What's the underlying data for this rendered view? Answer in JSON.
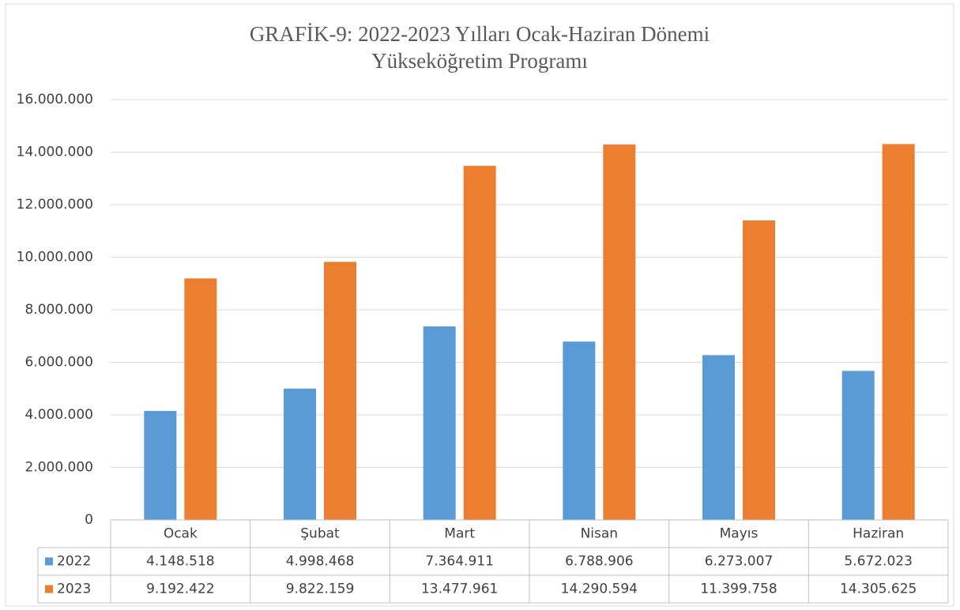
{
  "chart_data": {
    "type": "bar",
    "title": [
      "GRAFİK-9: 2022-2023 Yılları Ocak-Haziran Dönemi",
      "Yükseköğretim Programı"
    ],
    "categories": [
      "Ocak",
      "Şubat",
      "Mart",
      "Nisan",
      "Mayıs",
      "Haziran"
    ],
    "series": [
      {
        "name": "2022",
        "color": "#5b9bd5",
        "values": [
          4148518,
          4998468,
          7364911,
          6788906,
          6273007,
          5672023
        ],
        "value_labels": [
          "4.148.518",
          "4.998.468",
          "7.364.911",
          "6.788.906",
          "6.273.007",
          "5.672.023"
        ]
      },
      {
        "name": "2023",
        "color": "#ed7d31",
        "values": [
          9192422,
          9822159,
          13477961,
          14290594,
          11399758,
          14305625
        ],
        "value_labels": [
          "9.192.422",
          "9.822.159",
          "13.477.961",
          "14.290.594",
          "11.399.758",
          "14.305.625"
        ]
      }
    ],
    "ylim": [
      0,
      16000000
    ],
    "yticks": [
      0,
      {
        "value": 2000000,
        "label": "2.000.000"
      },
      {
        "value": 4000000,
        "label": "4.000.000"
      },
      {
        "value": 6000000,
        "label": "6.000.000"
      },
      {
        "value": 8000000,
        "label": "8.000.000"
      },
      {
        "value": 10000000,
        "label": "10.000.000"
      },
      {
        "value": 12000000,
        "label": "12.000.000"
      },
      {
        "value": 14000000,
        "label": "14.000.000"
      },
      {
        "value": 16000000,
        "label": "16.000.000"
      }
    ],
    "grid": true
  }
}
